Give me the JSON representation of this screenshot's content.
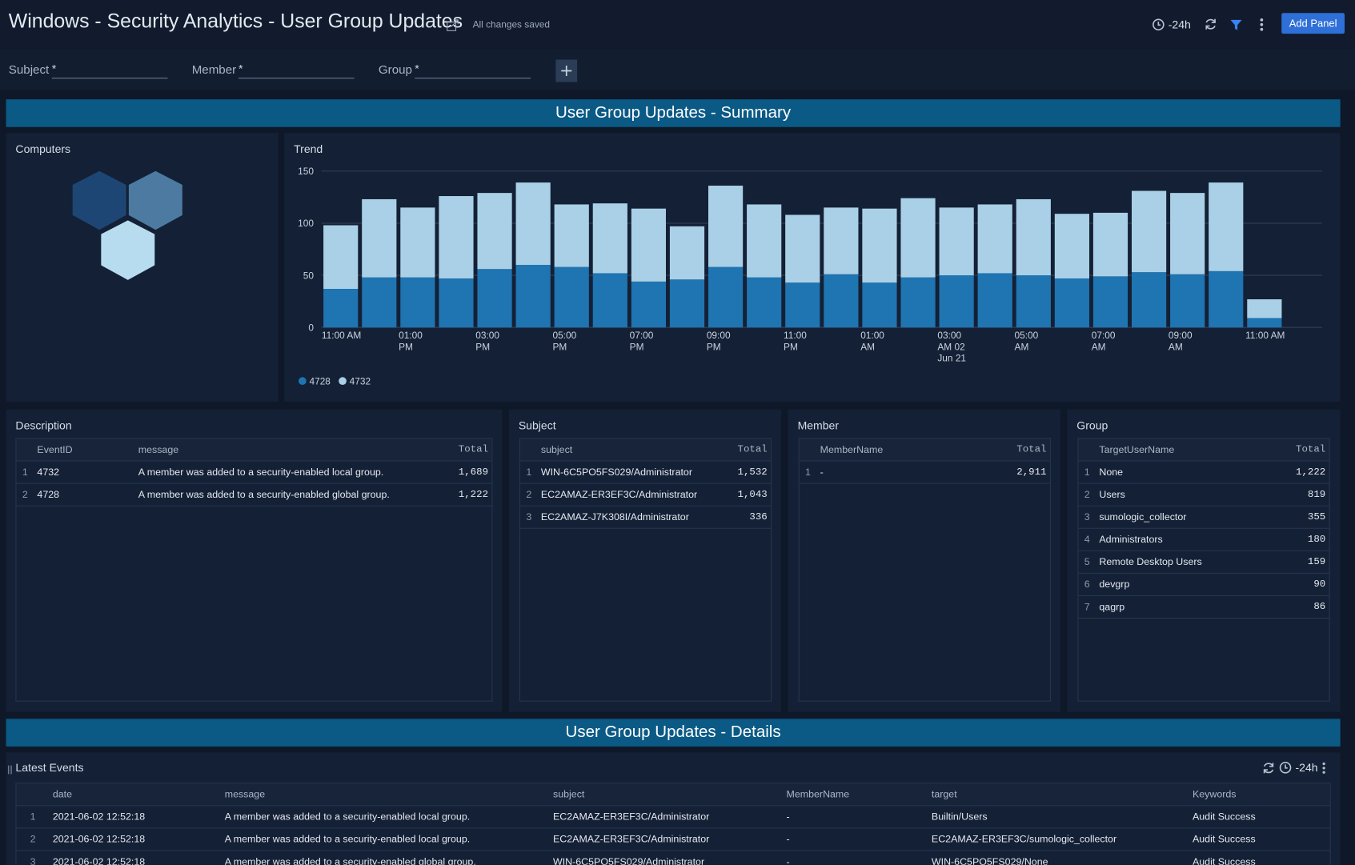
{
  "header": {
    "title": "Windows - Security Analytics - User Group Updates",
    "status": "All changes saved",
    "time_range": "-24h",
    "add_button": "Add Panel"
  },
  "filters": [
    {
      "label": "Subject",
      "value": "*"
    },
    {
      "label": "Member",
      "value": "*"
    },
    {
      "label": "Group",
      "value": "*"
    }
  ],
  "sections": [
    "User Group Updates - Summary",
    "User Group Updates - Details"
  ],
  "computers": {
    "title": "Computers"
  },
  "chart_data": {
    "type": "bar",
    "stacked": true,
    "title": "Trend",
    "categories": [
      "11:00 AM",
      null,
      "01:00 PM",
      null,
      "03:00 PM",
      null,
      "05:00 PM",
      null,
      "07:00 PM",
      null,
      "09:00 PM",
      null,
      "11:00 PM",
      null,
      "01:00 AM",
      null,
      "03:00 AM 02 Jun 21",
      null,
      "05:00 AM",
      null,
      "07:00 AM",
      null,
      "09:00 AM",
      null,
      "11:00 AM"
    ],
    "series": [
      {
        "name": "4728",
        "color": "#1f74b2",
        "values": [
          37,
          48,
          48,
          47,
          56,
          60,
          58,
          52,
          44,
          46,
          58,
          48,
          43,
          51,
          43,
          48,
          50,
          52,
          50,
          47,
          49,
          53,
          51,
          54,
          9
        ]
      },
      {
        "name": "4732",
        "color": "#a9d0e6",
        "values": [
          61,
          75,
          67,
          79,
          73,
          79,
          60,
          67,
          70,
          51,
          78,
          70,
          65,
          64,
          71,
          76,
          65,
          66,
          73,
          62,
          61,
          78,
          78,
          85,
          18
        ]
      }
    ],
    "ylim": [
      0,
      150
    ],
    "yticks": [
      0,
      50,
      100,
      150
    ],
    "grid": true,
    "legend": "bottom-left"
  },
  "tables": {
    "description": {
      "title": "Description",
      "columns": [
        "EventID",
        "message",
        "Total"
      ],
      "rows": [
        [
          "1",
          "4732",
          "A member was added to a security-enabled local group.",
          "1,689"
        ],
        [
          "2",
          "4728",
          "A member was added to a security-enabled global group.",
          "1,222"
        ]
      ]
    },
    "subject": {
      "title": "Subject",
      "columns": [
        "subject",
        "Total"
      ],
      "rows": [
        [
          "1",
          "WIN-6C5PO5FS029/Administrator",
          "1,532"
        ],
        [
          "2",
          "EC2AMAZ-ER3EF3C/Administrator",
          "1,043"
        ],
        [
          "3",
          "EC2AMAZ-J7K308I/Administrator",
          "336"
        ]
      ]
    },
    "member": {
      "title": "Member",
      "columns": [
        "MemberName",
        "Total"
      ],
      "rows": [
        [
          "1",
          "-",
          "2,911"
        ]
      ]
    },
    "group": {
      "title": "Group",
      "columns": [
        "TargetUserName",
        "Total"
      ],
      "rows": [
        [
          "1",
          "None",
          "1,222"
        ],
        [
          "2",
          "Users",
          "819"
        ],
        [
          "3",
          "sumologic_collector",
          "355"
        ],
        [
          "4",
          "Administrators",
          "180"
        ],
        [
          "5",
          "Remote Desktop Users",
          "159"
        ],
        [
          "6",
          "devgrp",
          "90"
        ],
        [
          "7",
          "qagrp",
          "86"
        ]
      ]
    }
  },
  "latest_events": {
    "title": "Latest Events",
    "time_range": "-24h",
    "columns": [
      "date",
      "message",
      "subject",
      "MemberName",
      "target",
      "Keywords"
    ],
    "rows": [
      [
        "1",
        "2021-06-02 12:52:18",
        "A member was added to a security-enabled local group.",
        "EC2AMAZ-ER3EF3C/Administrator",
        "-",
        "Builtin/Users",
        "Audit Success"
      ],
      [
        "2",
        "2021-06-02 12:52:18",
        "A member was added to a security-enabled local group.",
        "EC2AMAZ-ER3EF3C/Administrator",
        "-",
        "EC2AMAZ-ER3EF3C/sumologic_collector",
        "Audit Success"
      ],
      [
        "3",
        "2021-06-02 12:52:18",
        "A member was added to a security-enabled global group.",
        "WIN-6C5PO5FS029/Administrator",
        "-",
        "WIN-6C5PO5FS029/None",
        "Audit Success"
      ]
    ]
  }
}
